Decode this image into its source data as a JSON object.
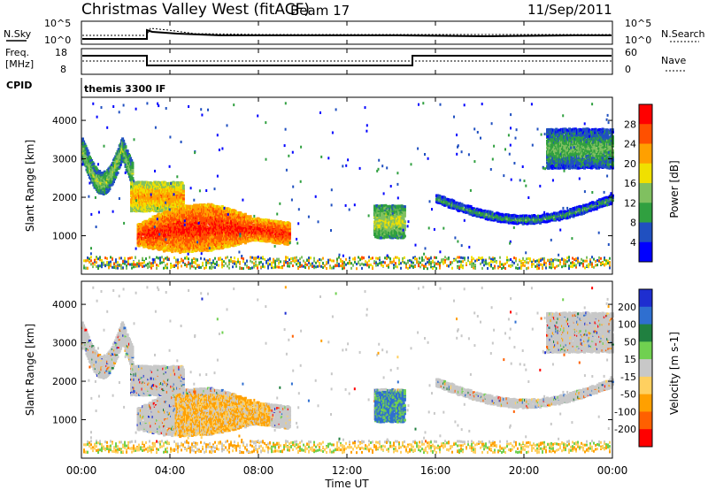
{
  "header": {
    "station": "Christmas Valley West (fitACF)",
    "beam": "Beam 17",
    "date": "11/Sep/2011"
  },
  "noise_panel": {
    "left_label": "N.Sky",
    "right_label": "N.Search",
    "left_ticks": [
      "10^5",
      "10^0"
    ],
    "right_ticks": [
      "10^5",
      "10^0"
    ]
  },
  "freq_panel": {
    "left_label_1": "Freq.",
    "left_label_2": "[MHz]",
    "right_label": "Nave",
    "left_ticks": [
      "18",
      "8"
    ],
    "right_ticks": [
      "60",
      "0"
    ]
  },
  "cpid": {
    "label": "CPID",
    "value": "themis 3300 IF"
  },
  "colors": {
    "power_scale": [
      "#0000ff",
      "#2050c0",
      "#30a040",
      "#80c060",
      "#f0e000",
      "#ffa000",
      "#ff5000",
      "#ff0000"
    ],
    "velocity_scale": [
      "#1e2ed0",
      "#2f6fd0",
      "#208040",
      "#70d050",
      "#c8c8c8",
      "#ffd060",
      "#ffa000",
      "#ff6000",
      "#ff0000"
    ],
    "gray_scatter": "#c8c8c8"
  },
  "chart_data": [
    {
      "type": "heatmap",
      "title": "Power",
      "ylabel": "Slant Range [km]",
      "xlabel": "",
      "y_ticks": [
        "1000",
        "2000",
        "3000",
        "4000"
      ],
      "colorbar": {
        "label": "Power [dB]",
        "ticks": [
          "4",
          "8",
          "12",
          "16",
          "20",
          "24",
          "28"
        ]
      },
      "features": [
        {
          "t_start": 0.0,
          "t_end": 2.3,
          "range_start": 2300,
          "range_end": 3900,
          "power_db": 10
        },
        {
          "t_start": 2.2,
          "t_end": 4.6,
          "range_start": 1700,
          "range_end": 2400,
          "power_db": 18
        },
        {
          "t_start": 2.5,
          "t_end": 9.4,
          "range_start": 700,
          "range_end": 1500,
          "power_db": 24
        },
        {
          "t_start": 13.2,
          "t_end": 14.6,
          "range_start": 1000,
          "range_end": 1800,
          "power_db": 12
        },
        {
          "t_start": 16.0,
          "t_end": 24.0,
          "range_start": 1400,
          "range_end": 2700,
          "power_db": 6
        },
        {
          "t_start": 21.0,
          "t_end": 24.0,
          "range_start": 2800,
          "range_end": 3800,
          "power_db": 8
        }
      ]
    },
    {
      "type": "heatmap",
      "title": "Velocity",
      "ylabel": "Slant Range [km]",
      "xlabel": "Time UT",
      "x_ticks": [
        "00:00",
        "04:00",
        "08:00",
        "12:00",
        "16:00",
        "20:00",
        "00:00"
      ],
      "y_ticks": [
        "1000",
        "2000",
        "3000",
        "4000"
      ],
      "colorbar": {
        "label": "Velocity [m s-1]",
        "ticks": [
          "200",
          "100",
          "50",
          "15",
          "-15",
          "-50",
          "-100",
          "-200"
        ]
      }
    }
  ]
}
